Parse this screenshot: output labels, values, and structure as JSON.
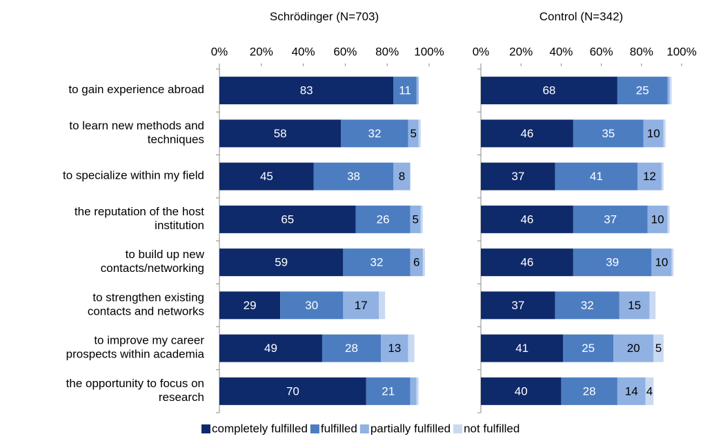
{
  "chart_data": {
    "type": "bar",
    "orientation": "horizontal",
    "stacked": true,
    "categories": [
      "to gain experience abroad",
      "to learn new methods and\ntechniques",
      "to specialize within my field",
      "the reputation of the host\ninstitution",
      "to build up new\ncontacts/networking",
      "to strengthen existing\ncontacts and networks",
      "to improve my career\nprospects within academia",
      "the opportunity to focus on\nresearch"
    ],
    "xlim": [
      0,
      100
    ],
    "xticks": [
      {
        "value": 0,
        "label": "0%"
      },
      {
        "value": 20,
        "label": "20%"
      },
      {
        "value": 40,
        "label": "40%"
      },
      {
        "value": 60,
        "label": "60%"
      },
      {
        "value": 80,
        "label": "80%"
      },
      {
        "value": 100,
        "label": "100%"
      }
    ],
    "series": [
      {
        "name": "completely fulfilled",
        "color": "#0f2a6a"
      },
      {
        "name": "fulfilled",
        "color": "#4c7dc1"
      },
      {
        "name": "partially fulfilled",
        "color": "#90b1e2"
      },
      {
        "name": "not fulfilled",
        "color": "#c9d9f1"
      }
    ],
    "panels": [
      {
        "title": "Schrödinger (N=703)",
        "values": [
          [
            83,
            58,
            45,
            65,
            59,
            29,
            49,
            70
          ],
          [
            11,
            32,
            38,
            26,
            32,
            30,
            28,
            21
          ],
          [
            1,
            5,
            8,
            5,
            6,
            17,
            13,
            3
          ],
          [
            0,
            1,
            0,
            1,
            1,
            3,
            3,
            1
          ]
        ]
      },
      {
        "title": "Control (N=342)",
        "values": [
          [
            68,
            46,
            37,
            46,
            46,
            37,
            41,
            40
          ],
          [
            25,
            35,
            41,
            37,
            39,
            32,
            25,
            28
          ],
          [
            1,
            10,
            12,
            10,
            10,
            15,
            20,
            14
          ],
          [
            1,
            1,
            1,
            1,
            1,
            3,
            5,
            4
          ]
        ]
      }
    ]
  }
}
